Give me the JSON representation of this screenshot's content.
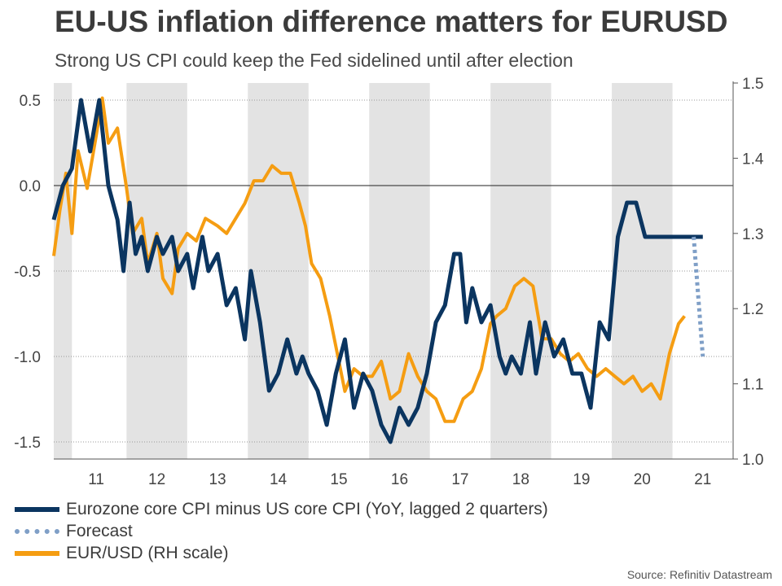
{
  "title": "EU-US inflation difference matters for EURUSD",
  "subtitle": "Strong US CPI could keep the Fed sidelined until after election",
  "source": "Source: Refinitiv Datastream",
  "colors": {
    "eu_us_diff": "#0b3560",
    "forecast": "#7f9fc7",
    "eurusd": "#f59d12",
    "shading": "#e3e3e3",
    "grid": "#9a9a9a"
  },
  "chart_data": {
    "type": "line",
    "title": "EU-US inflation difference matters for EURUSD",
    "subtitle": "Strong US CPI could keep the Fed sidelined until after election",
    "x_range": [
      2010.3,
      2021.5
    ],
    "x_ticks": [
      "11",
      "12",
      "13",
      "14",
      "15",
      "16",
      "17",
      "18",
      "19",
      "20",
      "21"
    ],
    "x_tick_positions": [
      2011,
      2012,
      2013,
      2014,
      2015,
      2016,
      2017,
      2018,
      2019,
      2020,
      2021
    ],
    "shaded_year_bands": [
      [
        2010.3,
        2010.6
      ],
      [
        2011.5,
        2012.5
      ],
      [
        2013.5,
        2014.5
      ],
      [
        2015.5,
        2016.5
      ],
      [
        2017.5,
        2018.5
      ],
      [
        2019.5,
        2020.5
      ]
    ],
    "y_left": {
      "range": [
        -1.6,
        0.6
      ],
      "ticks": [
        "0.5",
        "0.0",
        "-0.5",
        "-1.0",
        "-1.5"
      ],
      "tick_values": [
        0.5,
        0,
        -0.5,
        -1,
        -1.5
      ]
    },
    "y_right": {
      "range": [
        1.0,
        1.5
      ],
      "ticks": [
        "1.5",
        "1.4",
        "1.3",
        "1.2",
        "1.1",
        "1.0"
      ],
      "tick_values": [
        1.5,
        1.4,
        1.3,
        1.2,
        1.1,
        1.0
      ]
    },
    "grid": "horizontal dotted",
    "legend_position": "bottom-left",
    "series": [
      {
        "name": "Eurozone core CPI minus US core CPI (YoY, lagged 2 quarters)",
        "axis": "left",
        "style": "solid",
        "x": [
          2010.3,
          2010.45,
          2010.6,
          2010.75,
          2010.9,
          2011.05,
          2011.2,
          2011.35,
          2011.45,
          2011.55,
          2011.65,
          2011.75,
          2011.85,
          2012.0,
          2012.1,
          2012.25,
          2012.35,
          2012.5,
          2012.6,
          2012.75,
          2012.85,
          2013.0,
          2013.15,
          2013.3,
          2013.45,
          2013.55,
          2013.7,
          2013.85,
          2014.0,
          2014.15,
          2014.3,
          2014.4,
          2014.5,
          2014.65,
          2014.8,
          2014.95,
          2015.1,
          2015.25,
          2015.4,
          2015.55,
          2015.7,
          2015.85,
          2016.0,
          2016.15,
          2016.3,
          2016.45,
          2016.6,
          2016.75,
          2016.9,
          2017.0,
          2017.1,
          2017.2,
          2017.35,
          2017.5,
          2017.65,
          2017.75,
          2017.85,
          2018.0,
          2018.15,
          2018.25,
          2018.4,
          2018.55,
          2018.7,
          2018.85,
          2019.0,
          2019.15,
          2019.3,
          2019.45,
          2019.6,
          2019.75,
          2019.9,
          2020.05,
          2020.2,
          2020.35,
          2020.5,
          2020.65,
          2020.75,
          2020.85,
          2020.92,
          2021.0
        ],
        "values": [
          -0.2,
          0.0,
          0.1,
          0.5,
          0.2,
          0.5,
          0.0,
          -0.2,
          -0.5,
          -0.1,
          -0.4,
          -0.3,
          -0.5,
          -0.3,
          -0.4,
          -0.3,
          -0.5,
          -0.4,
          -0.6,
          -0.3,
          -0.5,
          -0.4,
          -0.7,
          -0.6,
          -0.9,
          -0.5,
          -0.8,
          -1.2,
          -1.1,
          -0.9,
          -1.1,
          -1.0,
          -1.1,
          -1.2,
          -1.4,
          -1.1,
          -0.9,
          -1.3,
          -1.1,
          -1.2,
          -1.4,
          -1.5,
          -1.3,
          -1.4,
          -1.3,
          -1.1,
          -0.8,
          -0.7,
          -0.4,
          -0.4,
          -0.8,
          -0.6,
          -0.8,
          -0.7,
          -1.0,
          -1.1,
          -1.0,
          -1.1,
          -0.8,
          -1.1,
          -0.8,
          -1.0,
          -0.9,
          -1.1,
          -1.1,
          -1.3,
          -0.8,
          -0.9,
          -0.3,
          -0.1,
          -0.1,
          -0.3,
          -0.3,
          -0.3,
          -0.3,
          -0.3,
          -0.3,
          -0.3,
          -0.3,
          -0.3
        ]
      },
      {
        "name": "Forecast",
        "axis": "left",
        "style": "dotted",
        "x": [
          2020.85,
          2021.0
        ],
        "values": [
          -0.3,
          -1.0
        ]
      },
      {
        "name": "EUR/USD (RH scale)",
        "axis": "right",
        "style": "solid",
        "x": [
          2010.3,
          2010.4,
          2010.5,
          2010.6,
          2010.7,
          2010.85,
          2011.0,
          2011.1,
          2011.2,
          2011.35,
          2011.5,
          2011.6,
          2011.75,
          2011.85,
          2012.0,
          2012.1,
          2012.25,
          2012.35,
          2012.5,
          2012.65,
          2012.8,
          2013.0,
          2013.15,
          2013.3,
          2013.45,
          2013.6,
          2013.75,
          2013.9,
          2014.05,
          2014.2,
          2014.35,
          2014.45,
          2014.55,
          2014.7,
          2014.85,
          2015.0,
          2015.1,
          2015.25,
          2015.4,
          2015.55,
          2015.7,
          2015.85,
          2016.0,
          2016.15,
          2016.3,
          2016.45,
          2016.6,
          2016.75,
          2016.9,
          2017.05,
          2017.2,
          2017.35,
          2017.5,
          2017.6,
          2017.75,
          2017.9,
          2018.05,
          2018.2,
          2018.35,
          2018.5,
          2018.65,
          2018.8,
          2018.95,
          2019.1,
          2019.25,
          2019.4,
          2019.55,
          2019.7,
          2019.85,
          2020.0,
          2020.15,
          2020.3,
          2020.45,
          2020.6,
          2020.7
        ],
        "values": [
          1.27,
          1.33,
          1.38,
          1.3,
          1.41,
          1.36,
          1.43,
          1.48,
          1.42,
          1.44,
          1.36,
          1.3,
          1.32,
          1.26,
          1.3,
          1.24,
          1.22,
          1.28,
          1.3,
          1.29,
          1.32,
          1.31,
          1.3,
          1.32,
          1.34,
          1.37,
          1.37,
          1.39,
          1.38,
          1.38,
          1.34,
          1.31,
          1.26,
          1.24,
          1.19,
          1.13,
          1.09,
          1.12,
          1.11,
          1.11,
          1.13,
          1.08,
          1.09,
          1.14,
          1.11,
          1.09,
          1.08,
          1.05,
          1.05,
          1.08,
          1.09,
          1.12,
          1.18,
          1.19,
          1.2,
          1.23,
          1.24,
          1.23,
          1.16,
          1.16,
          1.14,
          1.13,
          1.14,
          1.12,
          1.11,
          1.12,
          1.11,
          1.1,
          1.11,
          1.09,
          1.1,
          1.08,
          1.14,
          1.18,
          1.19
        ]
      }
    ]
  }
}
